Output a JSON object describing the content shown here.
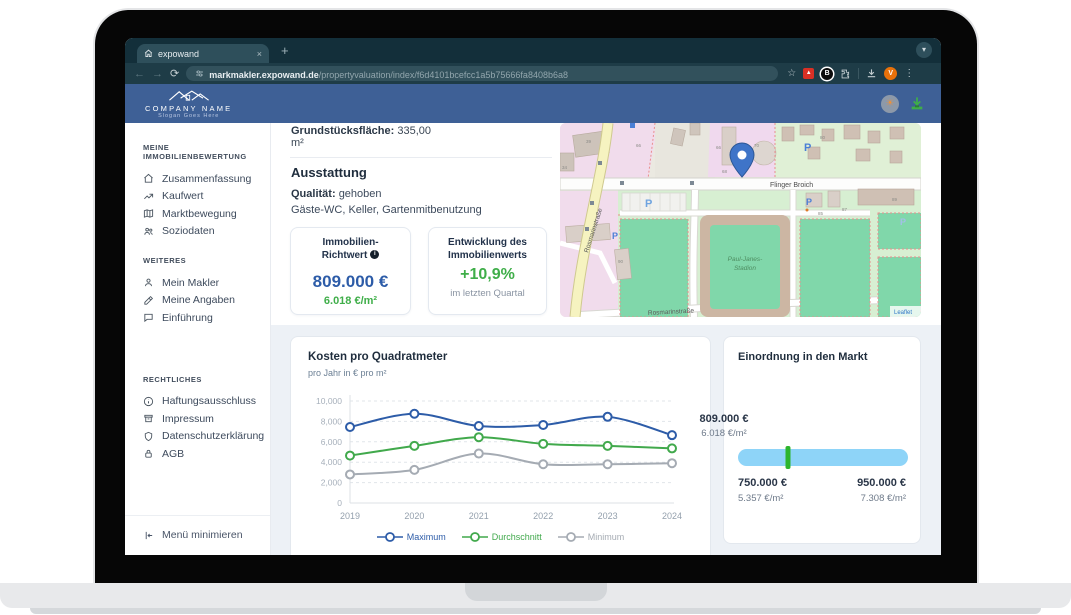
{
  "browser": {
    "tab_title": "expowand",
    "new_tab": "+",
    "close_tab": "×",
    "url_host": "markmakler.expowand.de",
    "url_path": "/propertyvaluation/index/f6d4101bcefcc1a5b75666fa8408b6a8",
    "avatar_letter": "V"
  },
  "app_header": {
    "company": "COMPANY NAME",
    "slogan": "Slogan Goes Here"
  },
  "sidebar": {
    "sections": [
      {
        "title": "MEINE IMMOBILIENBEWERTUNG",
        "items": [
          {
            "label": "Zusammenfassung"
          },
          {
            "label": "Kaufwert"
          },
          {
            "label": "Marktbewegung"
          },
          {
            "label": "Soziodaten"
          }
        ]
      },
      {
        "title": "WEITERES",
        "items": [
          {
            "label": "Mein Makler"
          },
          {
            "label": "Meine Angaben"
          },
          {
            "label": "Einführung"
          }
        ]
      },
      {
        "title": "RECHTLICHES",
        "items": [
          {
            "label": "Haftungsausschluss"
          },
          {
            "label": "Impressum"
          },
          {
            "label": "Datenschutzerklärung"
          },
          {
            "label": "AGB"
          }
        ]
      }
    ],
    "collapse_label": "Menü minimieren"
  },
  "property": {
    "area_label": "Grundstücksfläche:",
    "area_value": "335,00",
    "area_unit": "m²"
  },
  "features": {
    "title": "Ausstattung",
    "quality_label": "Qualität:",
    "quality_value": "gehoben",
    "list": "Gäste-WC, Keller, Gartenmitbenutzung"
  },
  "value_card": {
    "title_line1": "Immobilien-",
    "title_line2": "Richtwert",
    "info_glyph": "i",
    "value": "809.000 €",
    "per_sqm": "6.018 €/m²"
  },
  "growth_card": {
    "title_line1": "Entwicklung des",
    "title_line2": "Immobilienwerts",
    "value": "+10,9%",
    "caption": "im letzten Quartal"
  },
  "map": {
    "street_main": "Flinger Broich",
    "street_side": "Rosmarinstraße",
    "street_bottom": "Rosmarinstraße",
    "stadium_line1": "Paul-Janes-",
    "stadium_line2": "Stadion",
    "attribution": "Leaflet",
    "parking": "P",
    "house_numbers": [
      "39",
      "34",
      "66",
      "66",
      "68",
      "70",
      "80",
      "85",
      "87",
      "89",
      "90"
    ]
  },
  "chart_data": {
    "type": "line",
    "title": "Kosten pro Quadratmeter",
    "subtitle": "pro Jahr in € pro m²",
    "x": [
      "2019",
      "2020",
      "2021",
      "2022",
      "2023",
      "2024"
    ],
    "series": [
      {
        "name": "Maximum",
        "color": "#2d5ca8",
        "values": [
          7450,
          8750,
          7550,
          7650,
          8450,
          6650
        ]
      },
      {
        "name": "Durchschnitt",
        "color": "#41a94c",
        "values": [
          4650,
          5600,
          6450,
          5800,
          5600,
          5350
        ]
      },
      {
        "name": "Minimum",
        "color": "#a5abb3",
        "values": [
          2800,
          3250,
          4850,
          3800,
          3800,
          3900
        ]
      }
    ],
    "ylim": [
      0,
      10000
    ],
    "yticks": [
      "0",
      "2,000",
      "4,000",
      "6,000",
      "8,000",
      "10,000"
    ],
    "grid": true,
    "legend_position": "bottom"
  },
  "market_card": {
    "title": "Einordnung in den Markt",
    "current_value": "809.000 €",
    "current_per_sqm": "6.018 €/m²",
    "min_value": "750.000 €",
    "min_per_sqm": "5.357 €/m²",
    "max_value": "950.000 €",
    "max_per_sqm": "7.308 €/m²",
    "marker_percent": 29.5
  },
  "colors": {
    "header_blue": "#3e6096",
    "accent_blue": "#2d5ca8",
    "accent_green": "#3fae49",
    "slider_blue": "#8ed4f8",
    "marker_green": "#2db52d"
  }
}
